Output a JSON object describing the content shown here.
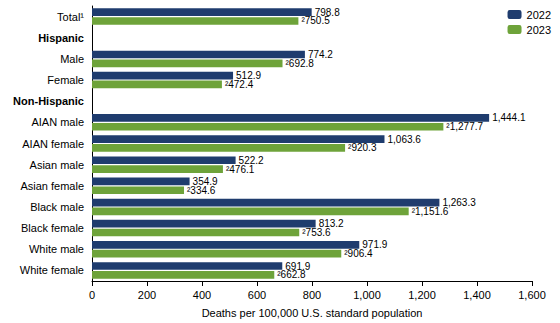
{
  "chart_data": {
    "type": "bar",
    "orientation": "horizontal",
    "categories": [
      "Total¹",
      "Hispanic",
      "Male",
      "Female",
      "Non-Hispanic",
      "AIAN male",
      "AIAN female",
      "Asian male",
      "Asian female",
      "Black male",
      "Black female",
      "White male",
      "White female"
    ],
    "series": [
      {
        "name": "2022",
        "color": "#1f3c6e",
        "values": [
          798.8,
          null,
          774.2,
          512.9,
          null,
          1444.1,
          1063.6,
          522.2,
          354.9,
          1263.3,
          813.2,
          971.9,
          691.9
        ],
        "value_labels": [
          "798.8",
          null,
          "774.2",
          "512.9",
          null,
          "1,444.1",
          "1,063.6",
          "522.2",
          "354.9",
          "1,263.3",
          "813.2",
          "971.9",
          "691.9"
        ]
      },
      {
        "name": "2023",
        "color": "#6ea33a",
        "values": [
          750.5,
          null,
          692.8,
          472.4,
          null,
          1277.7,
          920.3,
          476.1,
          334.6,
          1151.6,
          753.6,
          906.4,
          662.8
        ],
        "value_labels": [
          "²750.5",
          null,
          "²692.8",
          "²472.4",
          null,
          "²1,277.7",
          "²920.3",
          "²476.1",
          "²334.6",
          "²1,151.6",
          "²753.6",
          "²906.4",
          "²662.8"
        ]
      }
    ],
    "xlabel": "Deaths per 100,000 U.S. standard population",
    "xlim": [
      0,
      1600
    ],
    "xticks": [
      0,
      200,
      400,
      600,
      800,
      {
        "value": 1000,
        "label": "1,000"
      },
      {
        "value": 1200,
        "label": "1,200"
      },
      {
        "value": 1400,
        "label": "1,400"
      },
      {
        "value": 1600,
        "label": "1,600"
      }
    ],
    "grid": false,
    "legend": "upper right",
    "data_labels": true
  }
}
